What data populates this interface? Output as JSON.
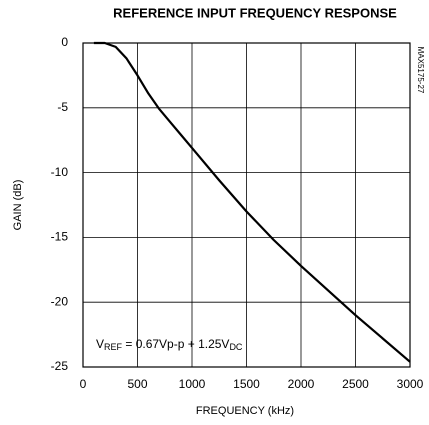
{
  "chart_data": {
    "type": "line",
    "title": "REFERENCE INPUT FREQUENCY RESPONSE",
    "xlabel": "FREQUENCY (kHz)",
    "ylabel": "GAIN (dB)",
    "side_label": "MAX5175-27",
    "annotation": [
      {
        "text": "V"
      },
      {
        "text": "REF",
        "sub": true
      },
      {
        "text": " = 0.67Vp-p + 1.25V"
      },
      {
        "text": "DC",
        "sub": true
      }
    ],
    "x": [
      100,
      200,
      300,
      400,
      500,
      600,
      700,
      800,
      900,
      1000,
      1250,
      1500,
      1750,
      2000,
      2250,
      2500,
      2750,
      3000
    ],
    "series": [
      {
        "color": "#000000",
        "values": [
          0,
          0,
          -0.3,
          -1.2,
          -2.5,
          -3.9,
          -5.1,
          -6.1,
          -7.1,
          -8.1,
          -10.6,
          -13,
          -15.2,
          -17.2,
          -19.1,
          -21,
          -22.8,
          -24.6
        ]
      }
    ],
    "xlim": [
      0,
      3000
    ],
    "xticks": [
      0,
      500,
      1000,
      1500,
      2000,
      2500,
      3000
    ],
    "ylim": [
      -25,
      0
    ],
    "yticks": [
      0,
      -5,
      -10,
      -15,
      -20,
      -25
    ],
    "grid": true
  }
}
